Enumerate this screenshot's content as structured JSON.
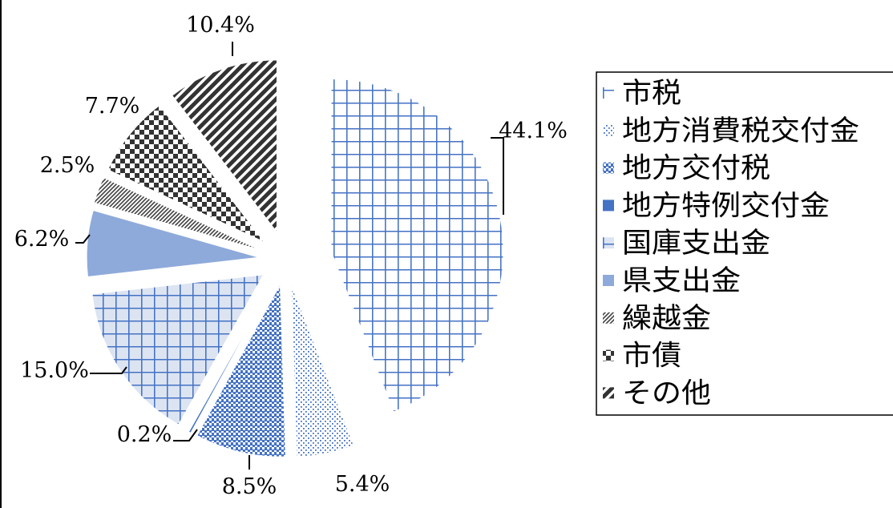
{
  "chart_data": {
    "type": "pie",
    "exploded": true,
    "legend_position": "right",
    "slices": [
      {
        "name": "市税",
        "value": 44.1,
        "label": "44.1%",
        "pattern": "grid",
        "color": "#4472C4",
        "fill": "#ffffff"
      },
      {
        "name": "地方消費税交付金",
        "value": 5.4,
        "label": "5.4%",
        "pattern": "dots",
        "color": "#4472C4",
        "fill": "#ffffff"
      },
      {
        "name": "地方交付税",
        "value": 8.5,
        "label": "8.5%",
        "pattern": "dense-checker",
        "color": "#4472C4",
        "fill": "#ffffff"
      },
      {
        "name": "地方特例交付金",
        "value": 0.2,
        "label": "0.2%",
        "pattern": "solid",
        "color": "#4472C4",
        "fill": "#4472C4"
      },
      {
        "name": "国庫支出金",
        "value": 15.0,
        "label": "15.0%",
        "pattern": "grid",
        "color": "#4472C4",
        "fill": "#DCE4F2"
      },
      {
        "name": "県支出金",
        "value": 6.2,
        "label": "6.2%",
        "pattern": "solid",
        "color": "#8EAADB",
        "fill": "#8EAADB"
      },
      {
        "name": "繰越金",
        "value": 2.5,
        "label": "2.5%",
        "pattern": "diagonal-fine",
        "color": "#404040",
        "fill": "#ffffff"
      },
      {
        "name": "市債",
        "value": 7.7,
        "label": "7.7%",
        "pattern": "checker",
        "color": "#333333",
        "fill": "#ffffff"
      },
      {
        "name": "その他",
        "value": 10.4,
        "label": "10.4%",
        "pattern": "diagonal-wide",
        "color": "#333333",
        "fill": "#ffffff"
      }
    ]
  }
}
